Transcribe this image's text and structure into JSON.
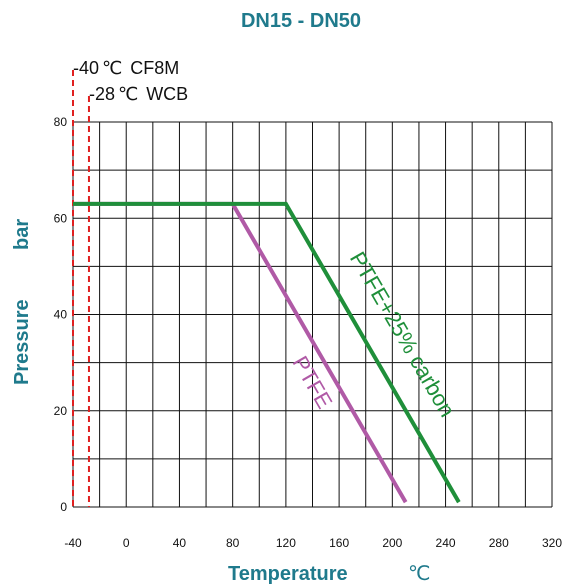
{
  "colors": {
    "title": "#1f7a8c",
    "axis_title": "#1f7a8c",
    "grid": "#111111",
    "ptfe": "#b05aa6",
    "ptfe_carbon": "#1f8f3a",
    "limit_line": "#e02020"
  },
  "chart_data": {
    "type": "line",
    "title": "DN15 - DN50",
    "xlabel": "Temperature",
    "xunit": "℃",
    "ylabel": "Pressure",
    "yunit": "bar",
    "xlim": [
      -40,
      320
    ],
    "ylim": [
      0,
      80
    ],
    "x_ticks": [
      -40,
      0,
      40,
      80,
      120,
      160,
      200,
      240,
      280,
      320
    ],
    "x_tick_labels": [
      "-40",
      "0",
      "40",
      "80",
      "120",
      "160",
      "200",
      "240",
      "280",
      "320"
    ],
    "y_ticks": [
      0,
      20,
      40,
      60,
      80
    ],
    "y_tick_labels": [
      "0",
      "20",
      "40",
      "60",
      "80"
    ],
    "grid": true,
    "series": [
      {
        "name": "PTFE",
        "color_key": "ptfe",
        "points": [
          [
            -40,
            63
          ],
          [
            80,
            63
          ],
          [
            210,
            1
          ]
        ]
      },
      {
        "name": "PTFE+25% carbon",
        "color_key": "ptfe_carbon",
        "points": [
          [
            -40,
            63
          ],
          [
            120,
            63
          ],
          [
            250,
            1
          ]
        ]
      }
    ],
    "limits": [
      {
        "x": -40,
        "label": "-40",
        "unit": "℃",
        "material": "CF8M"
      },
      {
        "x": -28,
        "label": "-28",
        "unit": "℃",
        "material": "WCB"
      }
    ]
  }
}
